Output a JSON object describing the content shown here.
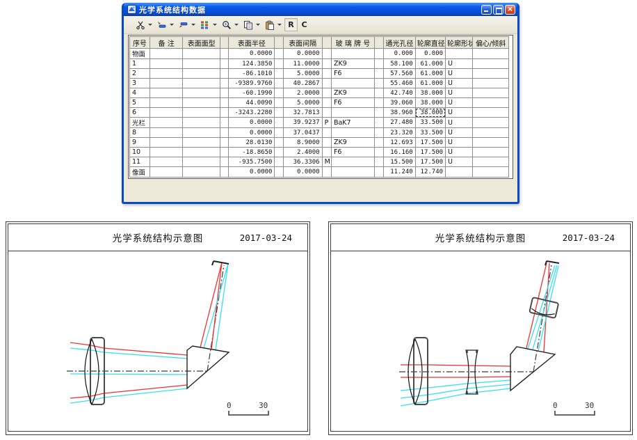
{
  "window": {
    "title": "光学系统结构数据",
    "controls": {
      "minimize": "minimize",
      "maximize": "maximize",
      "close": "close"
    },
    "toolbar": {
      "r_label": "R",
      "c_label": "C"
    },
    "table": {
      "columns": [
        "序号",
        "备 注",
        "表面面型",
        "",
        "表面半径",
        "",
        "表面间隔",
        "",
        "玻 璃 牌 号",
        "",
        "通光孔径",
        "轮廓直径",
        "轮廓形状",
        "偏心/倾斜"
      ],
      "rows": [
        [
          "物面",
          "",
          "",
          "",
          "0.0000",
          "",
          "0.0000",
          "",
          "",
          "",
          "0.000",
          "0.000",
          "",
          ""
        ],
        [
          "1",
          "",
          "",
          "",
          "124.3850",
          "",
          "11.0000",
          "",
          "ZK9",
          "",
          "58.100",
          "61.000",
          "U",
          ""
        ],
        [
          "2",
          "",
          "",
          "",
          "-86.1010",
          "",
          "5.0000",
          "",
          "F6",
          "",
          "57.560",
          "61.000",
          "U",
          ""
        ],
        [
          "3",
          "",
          "",
          "",
          "-9389.9760",
          "",
          "40.2867",
          "",
          "",
          "",
          "55.460",
          "61.000",
          "U",
          ""
        ],
        [
          "4",
          "",
          "",
          "",
          "-60.1990",
          "",
          "2.0000",
          "",
          "ZK9",
          "",
          "42.740",
          "38.000",
          "U",
          ""
        ],
        [
          "5",
          "",
          "",
          "",
          "44.0090",
          "",
          "5.0000",
          "",
          "F6",
          "",
          "39.060",
          "38.000",
          "U",
          ""
        ],
        [
          "6",
          "",
          "",
          "",
          "-3243.2280",
          "",
          "32.7813",
          "",
          "",
          "",
          "38.960",
          "38.000",
          "U",
          ""
        ],
        [
          "光栏",
          "",
          "",
          "",
          "0.0000",
          "",
          "39.9237",
          "P",
          "BaK7",
          "",
          "27.480",
          "33.500",
          "U",
          ""
        ],
        [
          "8",
          "",
          "",
          "",
          "0.0000",
          "",
          "37.0437",
          "",
          "",
          "",
          "23.320",
          "33.500",
          "U",
          ""
        ],
        [
          "9",
          "",
          "",
          "",
          "28.0130",
          "",
          "8.9000",
          "",
          "ZK9",
          "",
          "12.693",
          "17.500",
          "U",
          ""
        ],
        [
          "10",
          "",
          "",
          "",
          "-18.8650",
          "",
          "2.4000",
          "",
          "F6",
          "",
          "16.160",
          "17.500",
          "U",
          ""
        ],
        [
          "11",
          "",
          "",
          "",
          "-935.7500",
          "",
          "36.3306",
          "M",
          "",
          "",
          "15.500",
          "17.500",
          "U",
          ""
        ],
        [
          "像面",
          "",
          "",
          "",
          "0.0000",
          "",
          "0.0000",
          "",
          "",
          "",
          "11.240",
          "12.740",
          "",
          ""
        ]
      ],
      "focus": {
        "row": 6,
        "col": 11
      }
    }
  },
  "diagrams": {
    "left": {
      "title": "光学系统结构示意图",
      "date": "2017-03-24",
      "scale_zero": "0",
      "scale_thirty": "30"
    },
    "right": {
      "title": "光学系统结构示意图",
      "date": "2017-03-24",
      "scale_zero": "0",
      "scale_thirty": "30"
    }
  },
  "colors": {
    "ray_red": "#ee3030",
    "ray_cyan": "#35dff0",
    "glass_outline": "#4a4a4a",
    "axis": "#3a3a3a",
    "titlebar_blue": "#0650dd"
  }
}
